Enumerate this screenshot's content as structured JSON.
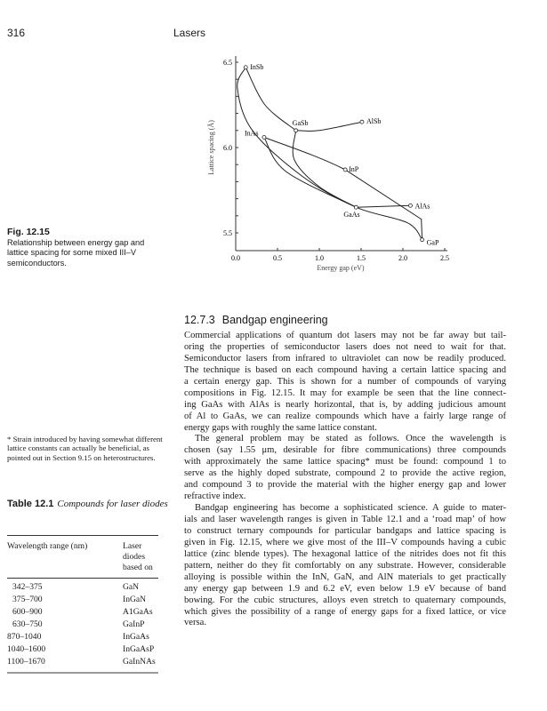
{
  "header": {
    "page_number": "316",
    "running_title": "Lasers"
  },
  "figure": {
    "label": "Fig. 12.15",
    "caption_lines": [
      "Relationship between energy gap and",
      "lattice spacing for some mixed III–V",
      "semiconductors."
    ]
  },
  "chart_data": {
    "type": "line",
    "xlabel": "Energy gap (eV)",
    "ylabel": "Lattice spacing (Å)",
    "xlim": [
      0,
      2.5
    ],
    "ylim": [
      5.45,
      6.52
    ],
    "xticks": [
      "0.0",
      "0.5",
      "1.0",
      "1.5",
      "2.0",
      "2.5"
    ],
    "yticks": [
      "5.5",
      "6.0",
      "6.5"
    ],
    "grid": false,
    "points": [
      {
        "name": "InSb",
        "x": 0.12,
        "y": 6.47
      },
      {
        "name": "GaSb",
        "x": 0.72,
        "y": 6.1
      },
      {
        "name": "AlSb",
        "x": 1.51,
        "y": 6.15
      },
      {
        "name": "InAs",
        "x": 0.34,
        "y": 6.06
      },
      {
        "name": "InP",
        "x": 1.31,
        "y": 5.87
      },
      {
        "name": "GaAs",
        "x": 1.44,
        "y": 5.65
      },
      {
        "name": "AlAs",
        "x": 2.09,
        "y": 5.66
      },
      {
        "name": "GaP",
        "x": 2.23,
        "y": 5.46
      }
    ],
    "curves": [
      [
        [
          0.12,
          6.47
        ],
        [
          0.35,
          6.25
        ],
        [
          0.72,
          6.1
        ]
      ],
      [
        [
          0.72,
          6.1
        ],
        [
          1.0,
          6.1
        ],
        [
          1.51,
          6.15
        ]
      ],
      [
        [
          0.12,
          6.47
        ],
        [
          0.02,
          6.35
        ],
        [
          0.2,
          6.1
        ],
        [
          0.8,
          5.83
        ],
        [
          1.44,
          5.65
        ],
        [
          2.05,
          5.56
        ],
        [
          2.23,
          5.46
        ]
      ],
      [
        [
          0.34,
          6.06
        ],
        [
          0.6,
          5.86
        ],
        [
          1.44,
          5.65
        ]
      ],
      [
        [
          0.72,
          6.1
        ],
        [
          0.7,
          5.93
        ],
        [
          1.0,
          5.77
        ],
        [
          1.44,
          5.65
        ]
      ],
      [
        [
          0.34,
          6.06
        ],
        [
          1.31,
          5.87
        ],
        [
          2.22,
          5.58
        ],
        [
          2.23,
          5.46
        ]
      ],
      [
        [
          1.44,
          5.65
        ],
        [
          2.09,
          5.66
        ]
      ]
    ]
  },
  "section": {
    "number": "12.7.3",
    "title": "Bandgap engineering"
  },
  "body": {
    "paragraphs": [
      [
        "Commercial applications of quantum dot lasers may not be far away but tail-",
        "oring the properties of semiconductor lasers does not need to wait for that.",
        "Semiconductor lasers from infrared to ultraviolet can now be readily produced.",
        "The technique is based on each compound having a certain lattice spacing and",
        "a certain energy gap. This is shown for a number of compounds of varying",
        "compositions in Fig. 12.15. It may for example be seen that the line connect-",
        "ing GaAs with AlAs is nearly horizontal, that is, by adding judicious amount",
        "of Al to GaAs, we can realize compounds which have a fairly large range of",
        "energy gaps with roughly the same lattice constant."
      ],
      [
        "The general problem may be stated as follows. Once the wavelength is",
        "chosen (say 1.55 μm, desirable for fibre communications) three compounds",
        "with approximately the same lattice spacing* must be found: compound 1 to",
        "serve as the highly doped substrate, compound 2 to provide the active region,",
        "and compound 3 to provide the material with the higher energy gap and lower",
        "refractive index."
      ],
      [
        "Bandgap engineering has become a sophisticated science. A guide to mater-",
        "ials and laser wavelength ranges is given in Table 12.1 and a ‘road map’ of how",
        "to construct ternary compounds for particular bandgaps and lattice spacing is",
        "given in Fig. 12.15, where we give most of the III–V compounds having a cubic",
        "lattice (zinc blende types). The hexagonal lattice of the nitrides does not fit this",
        "pattern, neither do they fit comfortably on any substrate. However, considerable",
        "alloying is possible within the InN, GaN, and AlN materials to get practically",
        "any energy gap between 1.9 and 6.2 eV, even below 1.9 eV because of band",
        "bowing. For the cubic structures, alloys even stretch to quaternary compounds,",
        "which gives the possibility of a range of energy gaps for a fixed lattice, or vice",
        "versa."
      ]
    ]
  },
  "footnote": "* Strain introduced by having somewhat different lattice constants can actually be beneficial, as pointed out in Section 9.15 on heterostructures.",
  "table": {
    "label": "Table 12.1",
    "title": "Compounds for laser diodes",
    "headers": [
      "Wavelength range (nm)",
      "Laser diodes based on"
    ],
    "rows": [
      [
        "342–375",
        "GaN"
      ],
      [
        "375–700",
        "InGaN"
      ],
      [
        "600–900",
        "A1GaAs"
      ],
      [
        "630–750",
        "GaInP"
      ],
      [
        "870–1040",
        "InGaAs"
      ],
      [
        "1040–1600",
        "InGaAsP"
      ],
      [
        "1100–1670",
        "GaInNAs"
      ]
    ]
  }
}
